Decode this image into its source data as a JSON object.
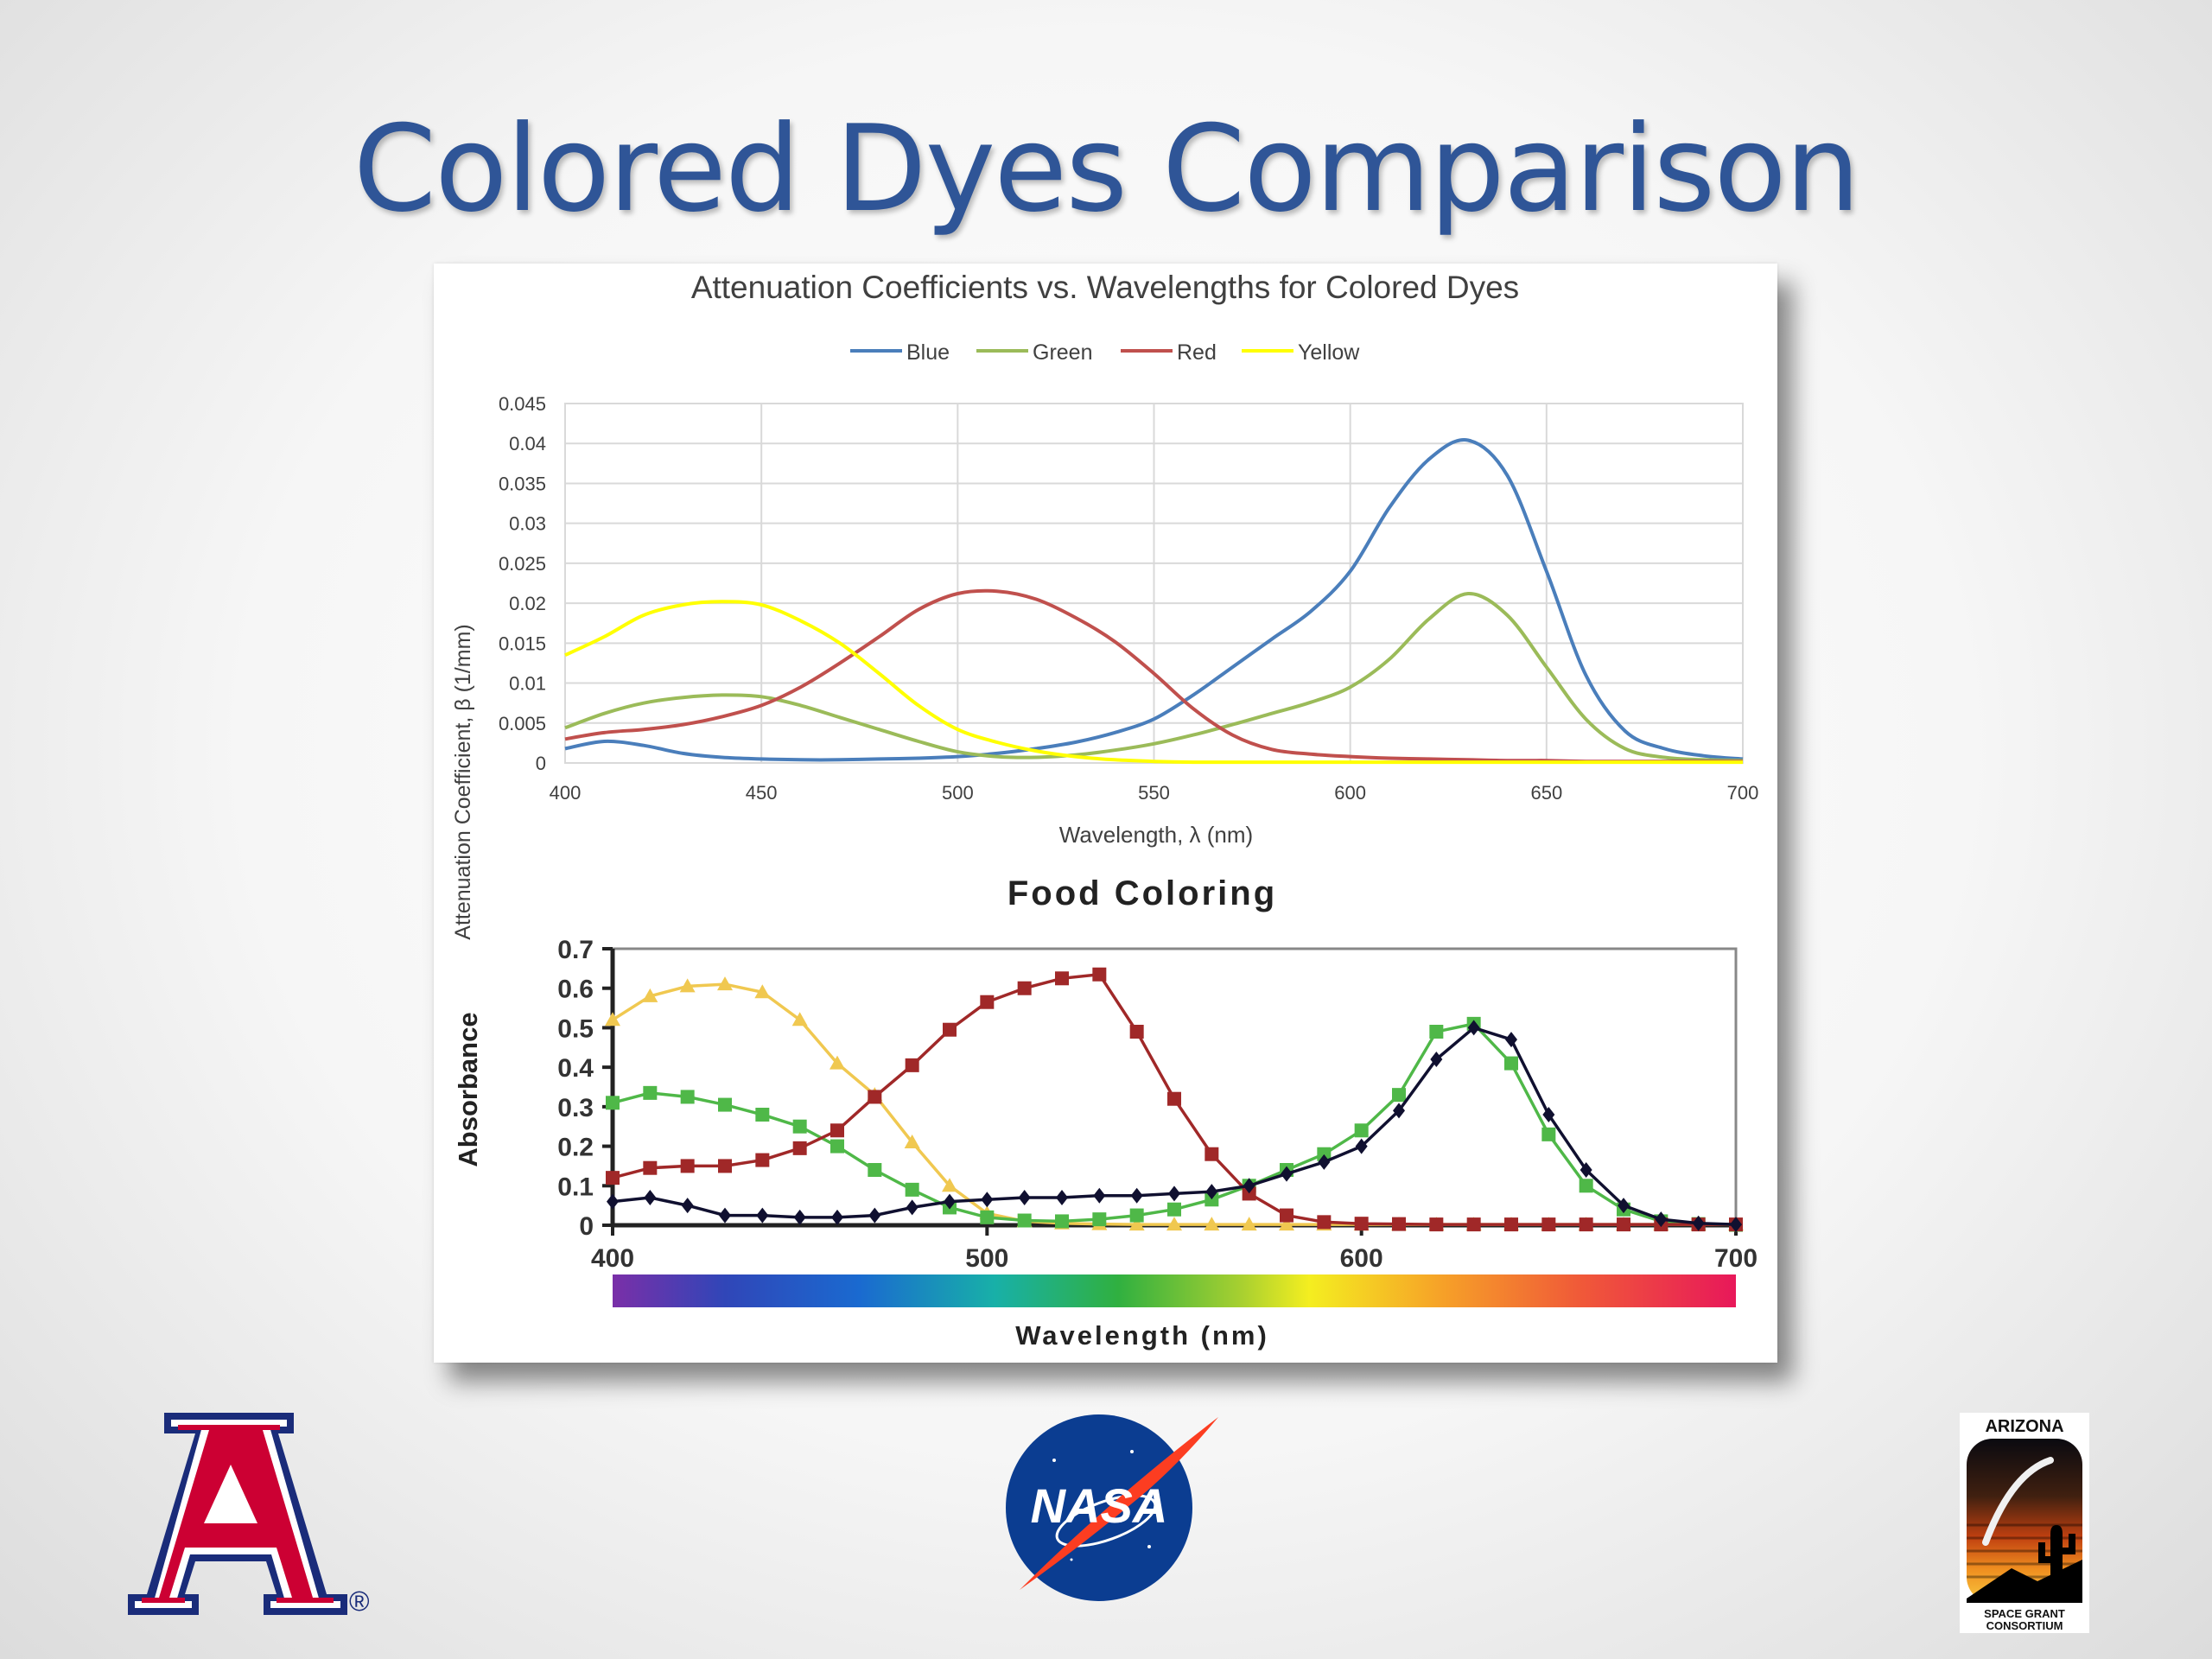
{
  "slide": {
    "title": "Colored Dyes Comparison"
  },
  "colors": {
    "title": "#2f5597",
    "Blue": "#4a7ebb",
    "Green": "#9bbb59",
    "Red": "#c0504d",
    "Yellow": "#ffff00",
    "fc_yellow": "#f0c850",
    "fc_green": "#4fb848",
    "fc_red": "#a02828",
    "fc_black": "#101030"
  },
  "logos": {
    "ua": "University of Arizona block A logo",
    "ua_mark": "®",
    "nasa": "NASA",
    "asgc_top": "ARIZONA",
    "asgc_bottom1": "SPACE GRANT",
    "asgc_bottom2": "CONSORTIUM"
  },
  "chart_data": [
    {
      "type": "line",
      "title": "Attenuation Coefficients vs. Wavelengths for Colored Dyes",
      "xlabel": "Wavelength, λ (nm)",
      "ylabel": "Attenuation Coefficient, β (1/mm)",
      "xlim": [
        400,
        700
      ],
      "ylim": [
        0,
        0.045
      ],
      "xticks": [
        400,
        450,
        500,
        550,
        600,
        650,
        700
      ],
      "yticks": [
        0,
        0.005,
        0.01,
        0.015,
        0.02,
        0.025,
        0.03,
        0.035,
        0.04,
        0.045
      ],
      "ytick_labels": [
        "0",
        "0.005",
        "0.01",
        "0.015",
        "0.02",
        "0.025",
        "0.03",
        "0.035",
        "0.04",
        "0.045"
      ],
      "grid": true,
      "legend": "top",
      "x": [
        400,
        410,
        420,
        430,
        440,
        450,
        460,
        470,
        480,
        490,
        500,
        510,
        520,
        530,
        540,
        550,
        560,
        570,
        580,
        590,
        600,
        610,
        620,
        630,
        640,
        650,
        660,
        670,
        680,
        690,
        700
      ],
      "series": [
        {
          "name": "Blue",
          "values": [
            0.0018,
            0.0027,
            0.0022,
            0.0012,
            0.0007,
            0.0005,
            0.0004,
            0.0004,
            0.0005,
            0.0006,
            0.0008,
            0.0012,
            0.0018,
            0.0026,
            0.0038,
            0.0055,
            0.0085,
            0.012,
            0.0155,
            0.019,
            0.024,
            0.032,
            0.038,
            0.0404,
            0.036,
            0.024,
            0.011,
            0.004,
            0.0018,
            0.0009,
            0.0005
          ]
        },
        {
          "name": "Green",
          "values": [
            0.0044,
            0.0062,
            0.0075,
            0.0082,
            0.0085,
            0.0083,
            0.0072,
            0.0057,
            0.0042,
            0.0027,
            0.0014,
            0.0008,
            0.0007,
            0.001,
            0.0016,
            0.0024,
            0.0035,
            0.0048,
            0.0062,
            0.0076,
            0.0095,
            0.013,
            0.018,
            0.0212,
            0.0185,
            0.012,
            0.0055,
            0.0018,
            0.0007,
            0.0004,
            0.0003
          ]
        },
        {
          "name": "Red",
          "values": [
            0.003,
            0.0038,
            0.0042,
            0.0048,
            0.0058,
            0.0072,
            0.0095,
            0.0125,
            0.0158,
            0.0192,
            0.0212,
            0.0215,
            0.0205,
            0.0182,
            0.0152,
            0.0112,
            0.0068,
            0.0035,
            0.0017,
            0.0011,
            0.0008,
            0.0006,
            0.0005,
            0.0004,
            0.0003,
            0.0003,
            0.0002,
            0.0002,
            0.0002,
            0.0002,
            0.0002
          ]
        },
        {
          "name": "Yellow",
          "values": [
            0.0135,
            0.0158,
            0.0185,
            0.0198,
            0.0202,
            0.0198,
            0.0178,
            0.015,
            0.0112,
            0.0072,
            0.0042,
            0.0026,
            0.0015,
            0.0008,
            0.0004,
            0.0002,
            0.0001,
            0.0001,
            0.0001,
            0.0001,
            0.0001,
            0.0001,
            0.0001,
            0.0001,
            0.0001,
            0.0001,
            0.0001,
            0.0001,
            0.0001,
            0.0001,
            0.0001
          ]
        }
      ]
    },
    {
      "type": "line",
      "title": "Food Coloring",
      "xlabel": "Wavelength (nm)",
      "ylabel": "Absorbance",
      "xlim": [
        400,
        700
      ],
      "ylim": [
        0,
        0.7
      ],
      "xticks": [
        400,
        500,
        600,
        700
      ],
      "yticks": [
        0,
        0.1,
        0.2,
        0.3,
        0.4,
        0.5,
        0.6,
        0.7
      ],
      "ytick_labels": [
        "0",
        "0.1",
        "0.2",
        "0.3",
        "0.4",
        "0.5",
        "0.6",
        "0.7"
      ],
      "grid": false,
      "legend": "none",
      "x": [
        400,
        410,
        420,
        430,
        440,
        450,
        460,
        470,
        480,
        490,
        500,
        510,
        520,
        530,
        540,
        550,
        560,
        570,
        580,
        590,
        600,
        610,
        620,
        630,
        640,
        650,
        660,
        670,
        680,
        690,
        700
      ],
      "series": [
        {
          "marker": "triangle",
          "values": [
            0.52,
            0.58,
            0.605,
            0.61,
            0.59,
            0.52,
            0.41,
            0.33,
            0.21,
            0.1,
            0.03,
            0.01,
            0.005,
            0.003,
            0.002,
            0.002,
            0.002,
            0.002,
            0.002,
            0.002,
            0.002,
            0.002,
            0.002,
            0.002,
            0.002,
            0.002,
            0.002,
            0.002,
            0.002,
            0.002,
            0.002
          ]
        },
        {
          "marker": "square",
          "values": [
            0.31,
            0.335,
            0.325,
            0.305,
            0.28,
            0.25,
            0.2,
            0.14,
            0.09,
            0.045,
            0.02,
            0.012,
            0.01,
            0.015,
            0.025,
            0.04,
            0.065,
            0.1,
            0.14,
            0.18,
            0.24,
            0.33,
            0.49,
            0.51,
            0.41,
            0.23,
            0.1,
            0.04,
            0.01,
            0.003,
            0.001
          ]
        },
        {
          "marker": "square",
          "values": [
            0.12,
            0.145,
            0.15,
            0.15,
            0.165,
            0.195,
            0.24,
            0.325,
            0.405,
            0.495,
            0.565,
            0.6,
            0.625,
            0.635,
            0.49,
            0.32,
            0.18,
            0.08,
            0.025,
            0.008,
            0.004,
            0.003,
            0.002,
            0.002,
            0.002,
            0.002,
            0.002,
            0.002,
            0.002,
            0.002,
            0.002
          ]
        },
        {
          "marker": "diamond",
          "values": [
            0.06,
            0.07,
            0.05,
            0.025,
            0.025,
            0.02,
            0.02,
            0.025,
            0.045,
            0.06,
            0.065,
            0.07,
            0.07,
            0.075,
            0.075,
            0.08,
            0.085,
            0.1,
            0.13,
            0.16,
            0.2,
            0.29,
            0.42,
            0.5,
            0.47,
            0.28,
            0.14,
            0.05,
            0.015,
            0.005,
            0.002
          ]
        }
      ]
    }
  ]
}
